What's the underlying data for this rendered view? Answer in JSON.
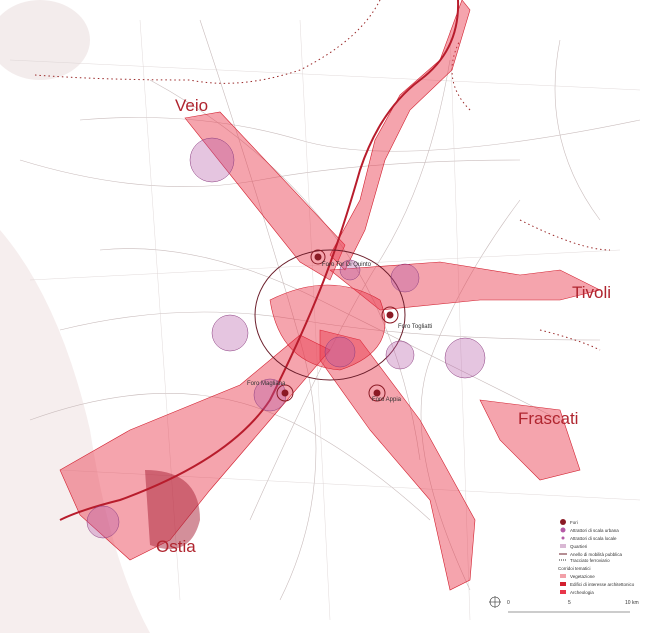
{
  "places": [
    "Veio",
    "Tivoli",
    "Frascati",
    "Ostia"
  ],
  "fori": [
    "Foro Tor Di Quinto",
    "Foro Togliatti",
    "Foro Magliana",
    "Foro Appia"
  ],
  "legend": {
    "items": [
      "Fori",
      "Attrattori di scala urbana",
      "Attrattori di scala locale",
      "Quartieri",
      "Anello di mobilità pubblica",
      "Tracciato ferroviario"
    ],
    "section": "Corridoi tematici",
    "corridors": [
      "Vegetazione",
      "Edifici di interesse architettonico",
      "Archeologia"
    ]
  },
  "scale": {
    "ticks": [
      "0",
      "5",
      "10 km"
    ]
  }
}
